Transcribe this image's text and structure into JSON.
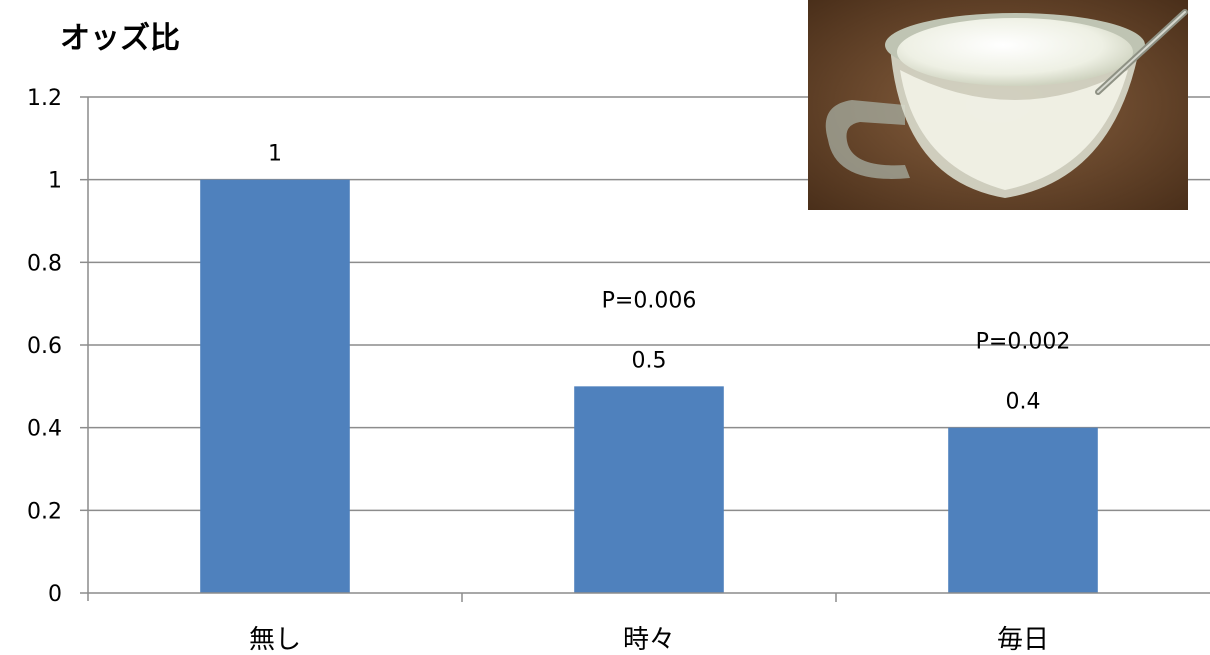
{
  "chart_data": {
    "type": "bar",
    "ylabel": "オッズ比",
    "categories": [
      "無し",
      "時々",
      "毎日"
    ],
    "values": [
      1,
      0.5,
      0.4
    ],
    "data_labels": [
      "1",
      "0.5",
      "0.4"
    ],
    "annotations": [
      "",
      "P=0.006",
      "P=0.002"
    ],
    "ylim": [
      0,
      1.2
    ],
    "yticks": [
      "0",
      "0.2",
      "0.4",
      "0.6",
      "0.8",
      "1",
      "1.2"
    ],
    "grid": true,
    "bar_color": "#4f81bd"
  }
}
